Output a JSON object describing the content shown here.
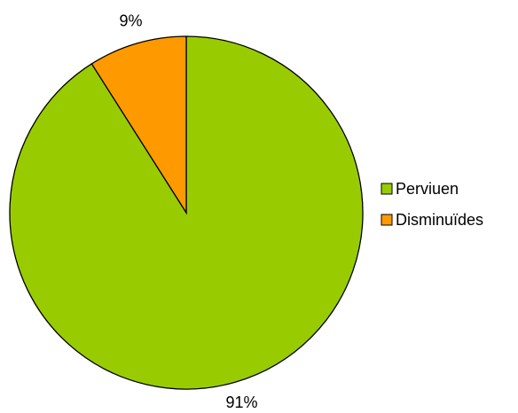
{
  "chart_data": {
    "type": "pie",
    "categories": [
      "Perviuen",
      "Disminuïdes"
    ],
    "values": [
      91,
      9
    ],
    "value_labels": [
      "91%",
      "9%"
    ],
    "colors": [
      "#99cc00",
      "#ff9900"
    ],
    "legend": "right"
  }
}
